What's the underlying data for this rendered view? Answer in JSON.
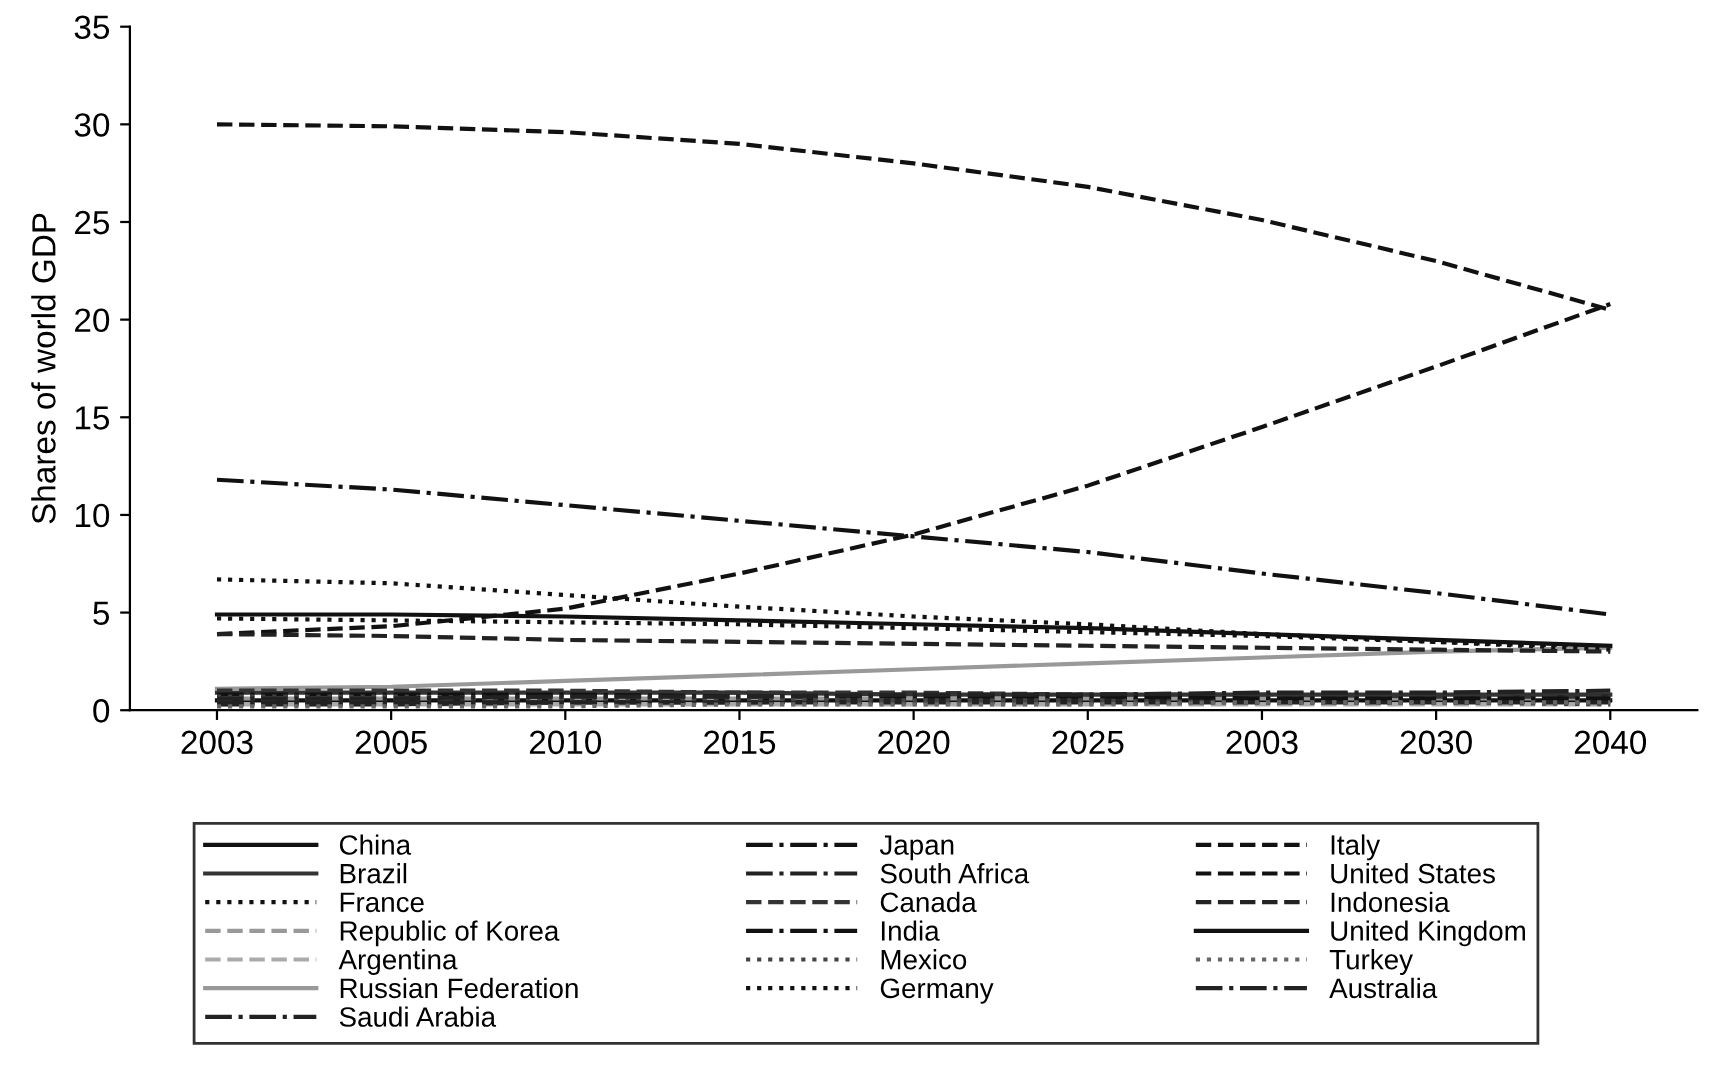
{
  "chart_data": {
    "type": "line",
    "ylabel": "Shares of world GDP",
    "categories": [
      "2003",
      "2005",
      "2010",
      "2015",
      "2020",
      "2025",
      "2003",
      "2030",
      "2040"
    ],
    "ylim": [
      0,
      35
    ],
    "yticks": [
      0,
      5,
      10,
      15,
      20,
      25,
      30,
      35
    ],
    "grid": false,
    "legend": "bottom",
    "marker": "none",
    "series": [
      {
        "name": "China",
        "color": "#111111",
        "line_style": "solid",
        "values": [
          0.5,
          0.5,
          0.5,
          0.5,
          0.5,
          0.5,
          0.5,
          0.5,
          0.5
        ]
      },
      {
        "name": "Brazil",
        "color": "#333333",
        "line_style": "solid",
        "values": [
          0.9,
          0.9,
          0.9,
          0.9,
          0.8,
          0.8,
          0.8,
          0.8,
          0.8
        ]
      },
      {
        "name": "France",
        "color": "#111111",
        "line_style": "dotted",
        "values": [
          4.7,
          4.6,
          4.5,
          4.4,
          4.2,
          4.0,
          3.8,
          3.5,
          3.2
        ]
      },
      {
        "name": "Republic of Korea",
        "color": "#999999",
        "line_style": "dashed",
        "values": [
          0.6,
          0.6,
          0.6,
          0.6,
          0.6,
          0.6,
          0.6,
          0.6,
          0.6
        ]
      },
      {
        "name": "Argentina",
        "color": "#aaaaaa",
        "line_style": "dashed",
        "values": [
          0.3,
          0.3,
          0.3,
          0.3,
          0.3,
          0.3,
          0.3,
          0.3,
          0.3
        ]
      },
      {
        "name": "Russian Federation",
        "color": "#999999",
        "line_style": "solid",
        "values": [
          1.1,
          1.2,
          1.5,
          1.8,
          2.1,
          2.4,
          2.7,
          3.0,
          3.2
        ]
      },
      {
        "name": "Saudi Arabia",
        "color": "#222222",
        "line_style": "dashdot",
        "values": [
          0.4,
          0.4,
          0.4,
          0.4,
          0.4,
          0.4,
          0.4,
          0.4,
          0.4
        ]
      },
      {
        "name": "Japan",
        "color": "#111111",
        "line_style": "dashdot",
        "values": [
          11.8,
          11.3,
          10.5,
          9.7,
          8.9,
          8.1,
          7.0,
          6.0,
          4.9
        ]
      },
      {
        "name": "South Africa",
        "color": "#222222",
        "line_style": "dashdot",
        "values": [
          0.3,
          0.3,
          0.4,
          0.4,
          0.5,
          0.5,
          0.6,
          0.6,
          0.7
        ]
      },
      {
        "name": "Canada",
        "color": "#333333",
        "line_style": "dashed",
        "values": [
          1.0,
          1.0,
          1.0,
          0.9,
          0.9,
          0.8,
          0.8,
          0.7,
          0.7
        ]
      },
      {
        "name": "India",
        "color": "#111111",
        "line_style": "dashdot",
        "values": [
          0.8,
          0.8,
          0.8,
          0.7,
          0.7,
          0.7,
          0.6,
          0.6,
          0.6
        ]
      },
      {
        "name": "Mexico",
        "color": "#444444",
        "line_style": "dotted",
        "values": [
          0.7,
          0.7,
          0.6,
          0.6,
          0.5,
          0.5,
          0.4,
          0.4,
          0.3
        ]
      },
      {
        "name": "Germany",
        "color": "#111111",
        "line_style": "dotted",
        "values": [
          6.7,
          6.5,
          5.9,
          5.3,
          4.8,
          4.4,
          3.9,
          3.5,
          3.1
        ]
      },
      {
        "name": "Italy",
        "color": "#111111",
        "line_style": "dashed",
        "values": [
          3.9,
          4.3,
          5.2,
          7.0,
          9.0,
          11.5,
          14.5,
          17.6,
          20.8
        ]
      },
      {
        "name": "United States",
        "color": "#111111",
        "line_style": "dashed",
        "values": [
          30.0,
          29.9,
          29.6,
          29.0,
          28.0,
          26.8,
          25.1,
          23.0,
          20.5
        ]
      },
      {
        "name": "Indonesia",
        "color": "#222222",
        "line_style": "dashed",
        "values": [
          3.9,
          3.8,
          3.6,
          3.5,
          3.4,
          3.3,
          3.2,
          3.1,
          3.0
        ]
      },
      {
        "name": "United Kingdom",
        "color": "#111111",
        "line_style": "solid",
        "values": [
          4.9,
          4.9,
          4.8,
          4.6,
          4.4,
          4.2,
          3.9,
          3.6,
          3.3
        ]
      },
      {
        "name": "Turkey",
        "color": "#666666",
        "line_style": "dotted",
        "values": [
          0.2,
          0.2,
          0.2,
          0.3,
          0.3,
          0.3,
          0.4,
          0.4,
          0.4
        ]
      },
      {
        "name": "Australia",
        "color": "#222222",
        "line_style": "dashdot",
        "values": [
          0.6,
          0.6,
          0.7,
          0.7,
          0.8,
          0.8,
          0.9,
          0.9,
          1.0
        ]
      }
    ]
  }
}
